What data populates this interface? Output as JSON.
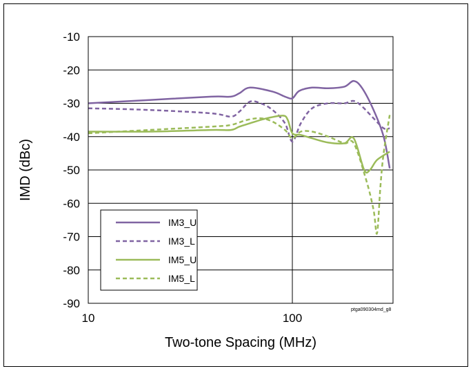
{
  "chart_data": {
    "type": "line",
    "title": "",
    "xlabel": "Two-tone Spacing (MHz)",
    "ylabel": "IMD (dBc)",
    "xscale": "log",
    "xlim": [
      10,
      1000
    ],
    "ylim": [
      -90,
      -10
    ],
    "grid": true,
    "x_ticks": [
      10,
      100
    ],
    "x_tick_labels": [
      "10",
      "100"
    ],
    "y_ticks": [
      -10,
      -20,
      -30,
      -40,
      -50,
      -60,
      -70,
      -80,
      -90
    ],
    "y_tick_labels": [
      "-10",
      "-20",
      "-30",
      "-40",
      "-50",
      "-60",
      "-70",
      "-80",
      "-90"
    ],
    "legend_position": "bottom-left",
    "annotation": "ptga090304md_g8",
    "series": [
      {
        "name": "IM3_U",
        "color": "#8064a2",
        "dash": "solid",
        "x": [
          10,
          20,
          40,
          50,
          55,
          62,
          80,
          92,
          100,
          108,
          125,
          150,
          180,
          200,
          220,
          250,
          280,
          300
        ],
        "y": [
          -30,
          -29,
          -28,
          -28,
          -27,
          -25.3,
          -26.5,
          -28,
          -28.5,
          -26.3,
          -25.3,
          -25.5,
          -25,
          -23.3,
          -25.5,
          -32,
          -40,
          -49.5
        ]
      },
      {
        "name": "IM3_L",
        "color": "#8064a2",
        "dash": "dashed",
        "x": [
          10,
          20,
          40,
          50,
          55,
          62,
          70,
          80,
          92,
          100,
          110,
          125,
          150,
          180,
          200,
          220,
          250,
          280,
          300
        ],
        "y": [
          -31.5,
          -32,
          -33,
          -34,
          -32.5,
          -29.5,
          -30,
          -32,
          -36,
          -41.5,
          -36,
          -31.5,
          -30,
          -30,
          -29.3,
          -31,
          -34.5,
          -37.5,
          -37.5
        ]
      },
      {
        "name": "IM5_U",
        "color": "#9bbb59",
        "dash": "solid",
        "x": [
          10,
          20,
          40,
          50,
          55,
          62,
          75,
          90,
          95,
          100,
          110,
          125,
          150,
          180,
          200,
          225,
          240,
          260,
          300
        ],
        "y": [
          -38.5,
          -38.5,
          -38,
          -38,
          -37,
          -36,
          -34.5,
          -33.7,
          -35,
          -39,
          -39.5,
          -40.5,
          -41.8,
          -42,
          -40.5,
          -50,
          -50,
          -47,
          -44.5
        ]
      },
      {
        "name": "IM5_L",
        "color": "#9bbb59",
        "dash": "dashed",
        "x": [
          10,
          20,
          40,
          50,
          60,
          70,
          80,
          92,
          100,
          110,
          125,
          150,
          180,
          200,
          230,
          250,
          260,
          270,
          280,
          300
        ],
        "y": [
          -39,
          -38,
          -37,
          -36.5,
          -35,
          -34.5,
          -35.5,
          -38,
          -40.5,
          -38.5,
          -38.5,
          -40,
          -42,
          -42,
          -53,
          -62,
          -69,
          -55,
          -45,
          -33.5
        ]
      }
    ]
  }
}
